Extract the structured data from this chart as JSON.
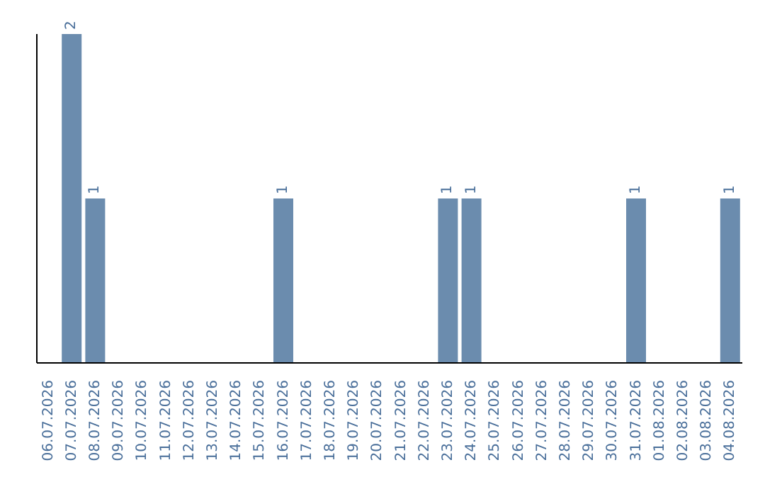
{
  "chart_data": {
    "type": "bar",
    "categories": [
      "06.07.2026",
      "07.07.2026",
      "08.07.2026",
      "09.07.2026",
      "10.07.2026",
      "11.07.2026",
      "12.07.2026",
      "13.07.2026",
      "14.07.2026",
      "15.07.2026",
      "16.07.2026",
      "17.07.2026",
      "18.07.2026",
      "19.07.2026",
      "20.07.2026",
      "21.07.2026",
      "22.07.2026",
      "23.07.2026",
      "24.07.2026",
      "25.07.2026",
      "26.07.2026",
      "27.07.2026",
      "28.07.2026",
      "29.07.2026",
      "30.07.2026",
      "31.07.2026",
      "01.08.2026",
      "02.08.2026",
      "03.08.2026",
      "04.08.2026"
    ],
    "values": [
      0,
      2,
      1,
      0,
      0,
      0,
      0,
      0,
      0,
      0,
      1,
      0,
      0,
      0,
      0,
      0,
      0,
      1,
      1,
      0,
      0,
      0,
      0,
      0,
      0,
      1,
      0,
      0,
      0,
      1
    ],
    "value_labels": [
      null,
      "2",
      "1",
      null,
      null,
      null,
      null,
      null,
      null,
      null,
      "1",
      null,
      null,
      null,
      null,
      null,
      null,
      "1",
      "1",
      null,
      null,
      null,
      null,
      null,
      null,
      "1",
      null,
      null,
      null,
      "1"
    ],
    "color": "#6b8cae",
    "grid": false,
    "legend": false
  }
}
